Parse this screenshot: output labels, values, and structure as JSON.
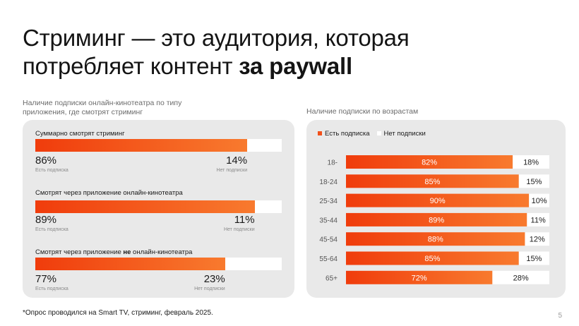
{
  "slide": {
    "title_part1": "Стриминг — это аудитория, которая",
    "title_part2": "потребляет контент ",
    "title_bold": "за paywall",
    "footnote": "*Опрос проводился на Smart TV, стриминг, февраль 2025.",
    "page_number": "5"
  },
  "chart_data": [
    {
      "type": "bar",
      "subtitle": "Наличие подписки онлайн-кинотеатра по типу приложения, где смотрят стриминг",
      "groups": [
        {
          "label": "Суммарно смотрят стриминг",
          "label_bold": "",
          "label_rest": "",
          "yes": 86,
          "no": 14,
          "yes_text": "86%",
          "no_text": "14%",
          "yes_caption": "Есть подписка",
          "no_caption": "Нет подписки"
        },
        {
          "label": "Смотрят через приложение онлайн-кинотеатра",
          "label_bold": "",
          "label_rest": "",
          "yes": 89,
          "no": 11,
          "yes_text": "89%",
          "no_text": "11%",
          "yes_caption": "Есть подписка",
          "no_caption": "Нет подписки"
        },
        {
          "label": "Смотрят через приложение ",
          "label_bold": "не",
          "label_rest": " онлайн-кинотеатра",
          "yes": 77,
          "no": 23,
          "yes_text": "77%",
          "no_text": "23%",
          "yes_caption": "Есть подписка",
          "no_caption": "Нет подписки"
        }
      ],
      "colors": {
        "yes": "#f03c0c",
        "yes_end": "#f87a2e",
        "no": "#ffffff"
      }
    },
    {
      "type": "bar",
      "subtitle": "Наличие подписки по возрастам",
      "legend": [
        "Есть подписка",
        "Нет подписки"
      ],
      "categories": [
        "18-",
        "18-24",
        "25-34",
        "35-44",
        "45-54",
        "55-64",
        "65+"
      ],
      "series": [
        {
          "name": "Есть подписка",
          "values": [
            82,
            85,
            90,
            89,
            88,
            85,
            72
          ],
          "labels": [
            "82%",
            "85%",
            "90%",
            "89%",
            "88%",
            "85%",
            "72%"
          ]
        },
        {
          "name": "Нет подписки",
          "values": [
            18,
            15,
            10,
            11,
            12,
            15,
            28
          ],
          "labels": [
            "18%",
            "15%",
            "10%",
            "11%",
            "12%",
            "15%",
            "28%"
          ]
        }
      ],
      "colors": {
        "yes": "#f03c0c",
        "yes_end": "#f87a2e",
        "no": "#ffffff"
      }
    }
  ]
}
